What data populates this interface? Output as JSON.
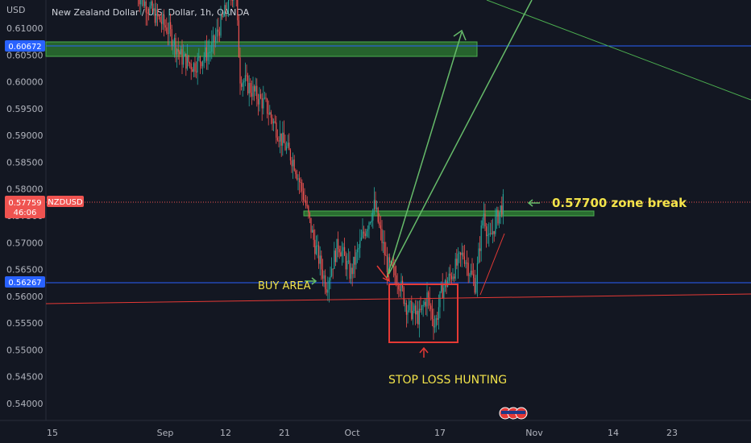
{
  "header": {
    "currency": "USD",
    "title": "New Zealand Dollar / U.S. Dollar, 1h, OANDA"
  },
  "colors": {
    "background": "#131722",
    "up": "#26a69a",
    "down": "#ef5350",
    "zone_fill": "#2e7d32",
    "zone_border": "#4caf50",
    "blue_line": "#2962ff",
    "red_line": "#e53935",
    "green_arrow": "#66bb6a",
    "annotation": "#f2e34a",
    "box": "#e53935"
  },
  "price_tags": {
    "upper": "0.60672",
    "current_price": "0.57759",
    "current_symbol": "NZDUSD",
    "countdown": "46:06",
    "lower": "0.56267"
  },
  "annotations": {
    "zone_break": "0.57700 zone break",
    "buy_area": "BUY AREA",
    "stop_loss": "STOP LOSS HUNTING"
  },
  "chart_data": {
    "type": "candlestick",
    "symbol": "NZDUSD",
    "timeframe": "1h",
    "y_axis": {
      "range": [
        0.5335,
        0.6195
      ],
      "ticks": [
        "0.61000",
        "0.60500",
        "0.60000",
        "0.59500",
        "0.59000",
        "0.58500",
        "0.58000",
        "0.57500",
        "0.57000",
        "0.56500",
        "0.56000",
        "0.55500",
        "0.55000",
        "0.54500",
        "0.54000"
      ],
      "tick_values": [
        0.61,
        0.605,
        0.6,
        0.595,
        0.59,
        0.585,
        0.58,
        0.575,
        0.57,
        0.565,
        0.56,
        0.555,
        0.55,
        0.545,
        0.54
      ]
    },
    "x_axis": {
      "ticks": [
        "15",
        "Sep",
        "12",
        "21",
        "Oct",
        "17",
        "Nov",
        "14",
        "23"
      ]
    },
    "price_path": [
      [
        "Sep 5",
        0.6165
      ],
      [
        "Sep 7",
        0.612
      ],
      [
        "Sep 9",
        0.6095
      ],
      [
        "Sep 10",
        0.6045
      ],
      [
        "Sep 11",
        0.603
      ],
      [
        "Sep 12",
        0.606
      ],
      [
        "Sep 13",
        0.614
      ],
      [
        "Sep 13 pm",
        0.618
      ],
      [
        "Sep 14",
        0.601
      ],
      [
        "Sep 15",
        0.5985
      ],
      [
        "Sep 17",
        0.5955
      ],
      [
        "Sep 19",
        0.589
      ],
      [
        "Sep 21",
        0.585
      ],
      [
        "Sep 23",
        0.578
      ],
      [
        "Sep 25",
        0.57
      ],
      [
        "Sep 27",
        0.562
      ],
      [
        "Sep 29",
        0.57
      ],
      [
        "Oct 1",
        0.564
      ],
      [
        "Oct 3",
        0.572
      ],
      [
        "Oct 5",
        0.577
      ],
      [
        "Oct 6",
        0.566
      ],
      [
        "Oct 8",
        0.563
      ],
      [
        "Oct 10",
        0.558
      ],
      [
        "Oct 12",
        0.556
      ],
      [
        "Oct 14",
        0.56
      ],
      [
        "Oct 15",
        0.5545
      ],
      [
        "Oct 16",
        0.561
      ],
      [
        "Oct 18",
        0.564
      ],
      [
        "Oct 20",
        0.568
      ],
      [
        "Oct 22",
        0.562
      ],
      [
        "Oct 24",
        0.576
      ],
      [
        "Oct 25",
        0.57
      ],
      [
        "Oct 26",
        0.574
      ],
      [
        "Oct 27",
        0.5776
      ]
    ],
    "levels": {
      "upper_blue_line": 0.60672,
      "current_price": 0.57759,
      "lower_blue_line": 0.56267
    },
    "zones": [
      {
        "name": "upper resistance zone",
        "from": 0.6047,
        "to": 0.6073
      },
      {
        "name": "0.57700 zone",
        "from": 0.5745,
        "to": 0.5755
      }
    ]
  }
}
